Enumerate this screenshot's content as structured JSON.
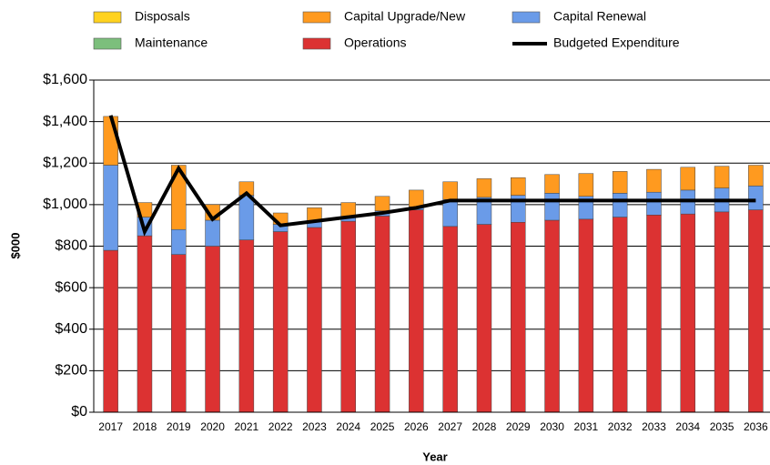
{
  "chart_data": {
    "type": "bar",
    "stacked": true,
    "categories": [
      "2017",
      "2018",
      "2019",
      "2020",
      "2021",
      "2022",
      "2023",
      "2024",
      "2025",
      "2026",
      "2027",
      "2028",
      "2029",
      "2030",
      "2031",
      "2032",
      "2033",
      "2034",
      "2035",
      "2036"
    ],
    "series": [
      {
        "name": "Disposals",
        "color": "#ffd21f",
        "values": [
          0,
          0,
          0,
          0,
          0,
          0,
          0,
          0,
          0,
          0,
          0,
          0,
          0,
          0,
          0,
          0,
          0,
          0,
          0,
          0
        ]
      },
      {
        "name": "Capital Upgrade/New",
        "color": "#ff9a1f",
        "values": [
          235,
          70,
          310,
          75,
          65,
          55,
          65,
          70,
          70,
          80,
          85,
          90,
          85,
          90,
          110,
          105,
          110,
          110,
          105,
          100
        ]
      },
      {
        "name": "Capital Renewal",
        "color": "#6a9be8",
        "values": [
          410,
          90,
          120,
          125,
          215,
          35,
          30,
          20,
          25,
          15,
          130,
          130,
          130,
          130,
          110,
          115,
          110,
          115,
          115,
          115
        ]
      },
      {
        "name": "Maintenance",
        "color": "#7cbf7c",
        "values": [
          0,
          0,
          0,
          0,
          0,
          0,
          0,
          0,
          0,
          0,
          0,
          0,
          0,
          0,
          0,
          0,
          0,
          0,
          0,
          0
        ]
      },
      {
        "name": "Operations",
        "color": "#dc3232",
        "values": [
          780,
          850,
          760,
          800,
          830,
          870,
          890,
          920,
          945,
          975,
          895,
          905,
          915,
          925,
          930,
          940,
          950,
          955,
          965,
          975
        ]
      },
      {
        "name": "Budgeted Expenditure",
        "type": "line",
        "color": "#000000",
        "values": [
          1430,
          870,
          1175,
          930,
          1055,
          900,
          920,
          940,
          960,
          985,
          1020,
          1020,
          1020,
          1020,
          1020,
          1020,
          1020,
          1020,
          1020,
          1020
        ]
      }
    ],
    "x_label": "Year",
    "y_label": "$000",
    "ylim": [
      0,
      1600
    ],
    "yticks": [
      {
        "value": 0,
        "label": "$0"
      },
      {
        "value": 200,
        "label": "$200"
      },
      {
        "value": 400,
        "label": "$400"
      },
      {
        "value": 600,
        "label": "$600"
      },
      {
        "value": 800,
        "label": "$800"
      },
      {
        "value": 1000,
        "label": "$1,000"
      },
      {
        "value": 1200,
        "label": "$1,200"
      },
      {
        "value": 1400,
        "label": "$1,400"
      },
      {
        "value": 1600,
        "label": "$1,600"
      }
    ],
    "grid": true,
    "legend": "top"
  }
}
